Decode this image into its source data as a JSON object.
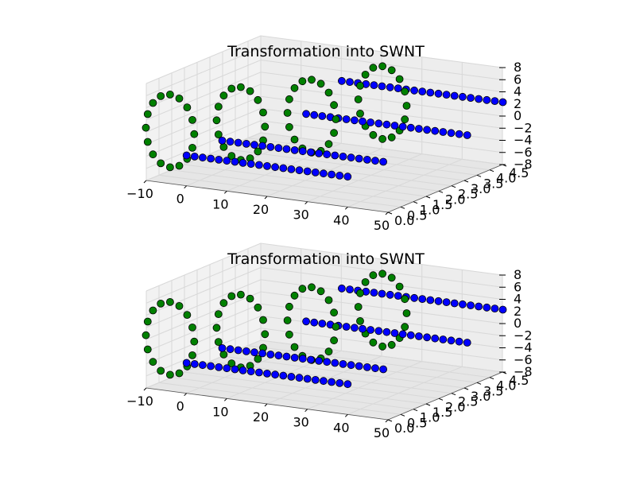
{
  "chart_data": [
    {
      "type": "scatter",
      "projection": "3d",
      "title": "Transformation into SWNT",
      "xlim": [
        -10,
        50
      ],
      "ylim": [
        0,
        4.5
      ],
      "zlim": [
        -8,
        8
      ],
      "x_ticks": [
        "−10",
        "0",
        "10",
        "20",
        "30",
        "40",
        "50"
      ],
      "y_ticks": [
        "0.0",
        "0.5",
        "1.0",
        "1.5",
        "2.0",
        "2.5",
        "3.0",
        "3.5",
        "4.0",
        "4.5"
      ],
      "z_ticks": [
        "−8",
        "−6",
        "−4",
        "−2",
        "0",
        "2",
        "4",
        "6",
        "8"
      ],
      "grid": true,
      "series": [
        {
          "color": "#0000ff",
          "marker": "circle",
          "rows": [
            {
              "x_start": 0,
              "x_end": 40,
              "y": 0.0,
              "z": -3
            },
            {
              "x_start": 0,
              "x_end": 40,
              "y": 1.4,
              "z": -3
            },
            {
              "x_start": 12,
              "x_end": 52,
              "y": 2.8,
              "z": 0
            },
            {
              "x_start": 12,
              "x_end": 52,
              "y": 4.2,
              "z": 3
            }
          ],
          "x_step": 2
        },
        {
          "color": "#008000",
          "marker": "circle",
          "rings": [
            {
              "x_center": -6,
              "y": 0.3,
              "z_center": 0,
              "radius": 6
            },
            {
              "x_center": 4,
              "y": 1.5,
              "z_center": 0,
              "radius": 6
            },
            {
              "x_center": 14,
              "y": 2.7,
              "z_center": 0,
              "radius": 6
            },
            {
              "x_center": 24,
              "y": 3.9,
              "z_center": 1,
              "radius": 6
            }
          ],
          "points_per_ring": 16
        }
      ]
    },
    {
      "type": "scatter",
      "projection": "3d",
      "title": "Transformation into SWNT",
      "xlim": [
        -10,
        50
      ],
      "ylim": [
        0,
        4.5
      ],
      "zlim": [
        -8,
        8
      ],
      "x_ticks": [
        "−10",
        "0",
        "10",
        "20",
        "30",
        "40",
        "50"
      ],
      "y_ticks": [
        "0.0",
        "0.5",
        "1.0",
        "1.5",
        "2.0",
        "2.5",
        "3.0",
        "3.5",
        "4.0",
        "4.5"
      ],
      "z_ticks": [
        "−8",
        "−6",
        "−4",
        "−2",
        "0",
        "2",
        "4",
        "6",
        "8"
      ],
      "grid": true,
      "series": [
        {
          "color": "#0000ff",
          "marker": "circle",
          "rows": [
            {
              "x_start": 0,
              "x_end": 40,
              "y": 0.0,
              "z": -3
            },
            {
              "x_start": 0,
              "x_end": 40,
              "y": 1.4,
              "z": -3
            },
            {
              "x_start": 12,
              "x_end": 52,
              "y": 2.8,
              "z": 0
            },
            {
              "x_start": 12,
              "x_end": 52,
              "y": 4.2,
              "z": 3
            }
          ],
          "x_step": 2
        },
        {
          "color": "#008000",
          "marker": "circle",
          "rings": [
            {
              "x_center": -6,
              "y": 0.3,
              "z_center": 0,
              "radius": 6
            },
            {
              "x_center": 4,
              "y": 1.5,
              "z_center": 0,
              "radius": 6
            },
            {
              "x_center": 14,
              "y": 2.7,
              "z_center": 0,
              "radius": 6
            },
            {
              "x_center": 24,
              "y": 3.9,
              "z_center": 1,
              "radius": 6
            }
          ],
          "points_per_ring": 16
        }
      ]
    }
  ]
}
